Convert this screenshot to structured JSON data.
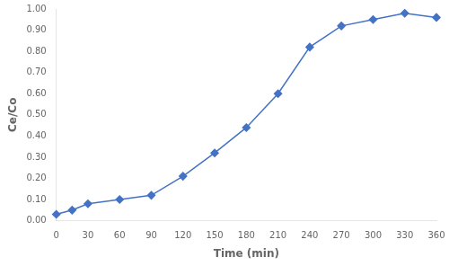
{
  "chart_data": {
    "type": "line",
    "x": [
      0,
      15,
      30,
      60,
      90,
      120,
      150,
      180,
      210,
      240,
      270,
      300,
      330,
      360
    ],
    "values": [
      0.03,
      0.05,
      0.08,
      0.1,
      0.12,
      0.21,
      0.32,
      0.44,
      0.6,
      0.82,
      0.92,
      0.95,
      0.98,
      0.96
    ],
    "color": "#4472C4",
    "marker": "diamond",
    "xlabel": "Time (min)",
    "ylabel": "Ce/Co",
    "xlim": [
      0,
      360
    ],
    "ylim": [
      0,
      1
    ],
    "xticks": [
      0,
      30,
      60,
      90,
      120,
      150,
      180,
      210,
      240,
      270,
      300,
      330,
      360
    ],
    "yticks": [
      {
        "value": 0,
        "label": "0.00"
      },
      {
        "value": 0.1,
        "label": "0.10"
      },
      {
        "value": 0.2,
        "label": "0.20"
      },
      {
        "value": 0.3,
        "label": "0.30"
      },
      {
        "value": 0.4,
        "label": "0.40"
      },
      {
        "value": 0.5,
        "label": "0.50"
      },
      {
        "value": 0.6,
        "label": "0.60"
      },
      {
        "value": 0.7,
        "label": "0.70"
      },
      {
        "value": 0.8,
        "label": "0.80"
      },
      {
        "value": 0.9,
        "label": "0.90"
      },
      {
        "value": 1,
        "label": "1.00"
      }
    ],
    "grid": false
  }
}
